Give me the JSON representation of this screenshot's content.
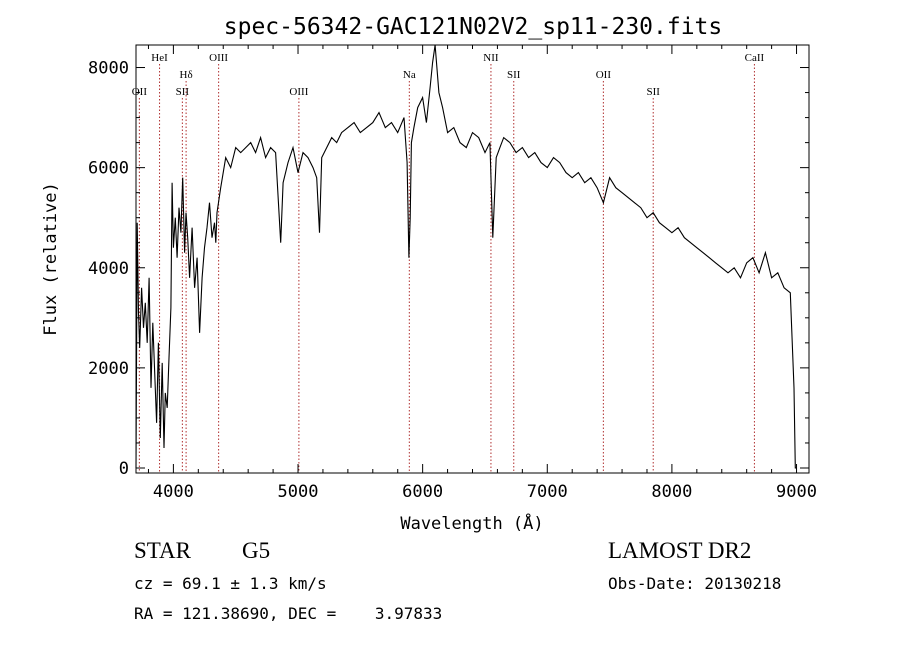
{
  "chart_data": {
    "type": "line",
    "title": "spec-56342-GAC121N02V2_sp11-230.fits",
    "xlabel": "Wavelength (Å)",
    "ylabel": "Flux (relative)",
    "xlim": [
      3700,
      9100
    ],
    "ylim": [
      -100,
      8450
    ],
    "xticks": [
      4000,
      5000,
      6000,
      7000,
      8000,
      9000
    ],
    "yticks": [
      0,
      2000,
      4000,
      6000,
      8000
    ],
    "grid": false,
    "legend": "none",
    "line_color": "#000000",
    "series": [
      {
        "x": [
          3700,
          3710,
          3720,
          3730,
          3745,
          3760,
          3775,
          3790,
          3805,
          3820,
          3835,
          3850,
          3865,
          3880,
          3895,
          3910,
          3925,
          3935,
          3950,
          3965,
          3980,
          3990,
          4000,
          4015,
          4030,
          4045,
          4060,
          4075,
          4090,
          4101,
          4115,
          4130,
          4150,
          4170,
          4190,
          4210,
          4230,
          4250,
          4270,
          4290,
          4310,
          4330,
          4340,
          4350,
          4380,
          4420,
          4460,
          4500,
          4540,
          4580,
          4620,
          4660,
          4700,
          4740,
          4780,
          4820,
          4861,
          4880,
          4920,
          4960,
          5000,
          5040,
          5080,
          5120,
          5150,
          5172,
          5190,
          5230,
          5270,
          5310,
          5350,
          5400,
          5450,
          5500,
          5550,
          5600,
          5650,
          5700,
          5750,
          5800,
          5850,
          5875,
          5890,
          5900,
          5910,
          5930,
          5960,
          6000,
          6030,
          6060,
          6080,
          6100,
          6130,
          6160,
          6200,
          6250,
          6300,
          6350,
          6400,
          6450,
          6500,
          6540,
          6563,
          6590,
          6620,
          6650,
          6700,
          6750,
          6800,
          6850,
          6900,
          6950,
          7000,
          7050,
          7100,
          7150,
          7200,
          7250,
          7300,
          7350,
          7400,
          7450,
          7500,
          7550,
          7600,
          7650,
          7700,
          7750,
          7800,
          7850,
          7900,
          7950,
          8000,
          8050,
          8100,
          8150,
          8200,
          8250,
          8300,
          8350,
          8400,
          8450,
          8500,
          8550,
          8600,
          8650,
          8700,
          8750,
          8800,
          8850,
          8900,
          8950,
          8980,
          8990,
          9000
        ],
        "y": [
          0,
          4900,
          3100,
          2400,
          3600,
          2800,
          3300,
          2500,
          3800,
          1600,
          2900,
          1900,
          900,
          2500,
          600,
          2100,
          400,
          1500,
          1200,
          2200,
          3200,
          5700,
          4400,
          5000,
          4200,
          5200,
          4700,
          5800,
          4300,
          5100,
          4600,
          3800,
          4800,
          3600,
          4200,
          2700,
          3800,
          4400,
          4800,
          5300,
          4600,
          4900,
          4500,
          5100,
          5600,
          6200,
          6000,
          6400,
          6300,
          6400,
          6500,
          6300,
          6600,
          6200,
          6400,
          6300,
          4500,
          5700,
          6100,
          6400,
          5900,
          6300,
          6200,
          6000,
          5800,
          4700,
          6200,
          6400,
          6600,
          6500,
          6700,
          6800,
          6900,
          6700,
          6800,
          6900,
          7100,
          6800,
          6900,
          6700,
          7000,
          6100,
          4200,
          5000,
          6500,
          6800,
          7200,
          7400,
          6900,
          7600,
          8100,
          8450,
          7500,
          7200,
          6700,
          6800,
          6500,
          6400,
          6700,
          6600,
          6300,
          6500,
          4600,
          6200,
          6400,
          6600,
          6500,
          6300,
          6400,
          6200,
          6300,
          6100,
          6000,
          6200,
          6100,
          5900,
          5800,
          5900,
          5700,
          5800,
          5600,
          5300,
          5800,
          5600,
          5500,
          5400,
          5300,
          5200,
          5000,
          5100,
          4900,
          4800,
          4700,
          4800,
          4600,
          4500,
          4400,
          4300,
          4200,
          4100,
          4000,
          3900,
          4000,
          3800,
          4100,
          4200,
          3900,
          4300,
          3800,
          3900,
          3600,
          3500,
          1600,
          0,
          0
        ]
      }
    ],
    "line_markers": [
      {
        "label": "OII",
        "x": 3727,
        "row": 3
      },
      {
        "label": "HeI",
        "x": 3889,
        "row": 1
      },
      {
        "label": "Hδ",
        "x": 4102,
        "row": 2
      },
      {
        "label": "SII",
        "x": 4072,
        "row": 3
      },
      {
        "label": "OIII",
        "x": 4363,
        "row": 1
      },
      {
        "label": "OIII",
        "x": 5007,
        "row": 3
      },
      {
        "label": "Na",
        "x": 5893,
        "row": 2
      },
      {
        "label": "NII",
        "x": 6548,
        "row": 1
      },
      {
        "label": "SII",
        "x": 6731,
        "row": 2
      },
      {
        "label": "OII",
        "x": 7450,
        "row": 2
      },
      {
        "label": "SII",
        "x": 7850,
        "row": 3
      },
      {
        "label": "CaII",
        "x": 8662,
        "row": 1
      }
    ]
  },
  "info": {
    "class": "STAR",
    "subclass": "G5",
    "survey": "LAMOST DR2",
    "cz": "cz = 69.1 ± 1.3 km/s",
    "obs_date": "Obs-Date: 20130218",
    "coords": "RA = 121.38690, DEC =    3.97833"
  }
}
